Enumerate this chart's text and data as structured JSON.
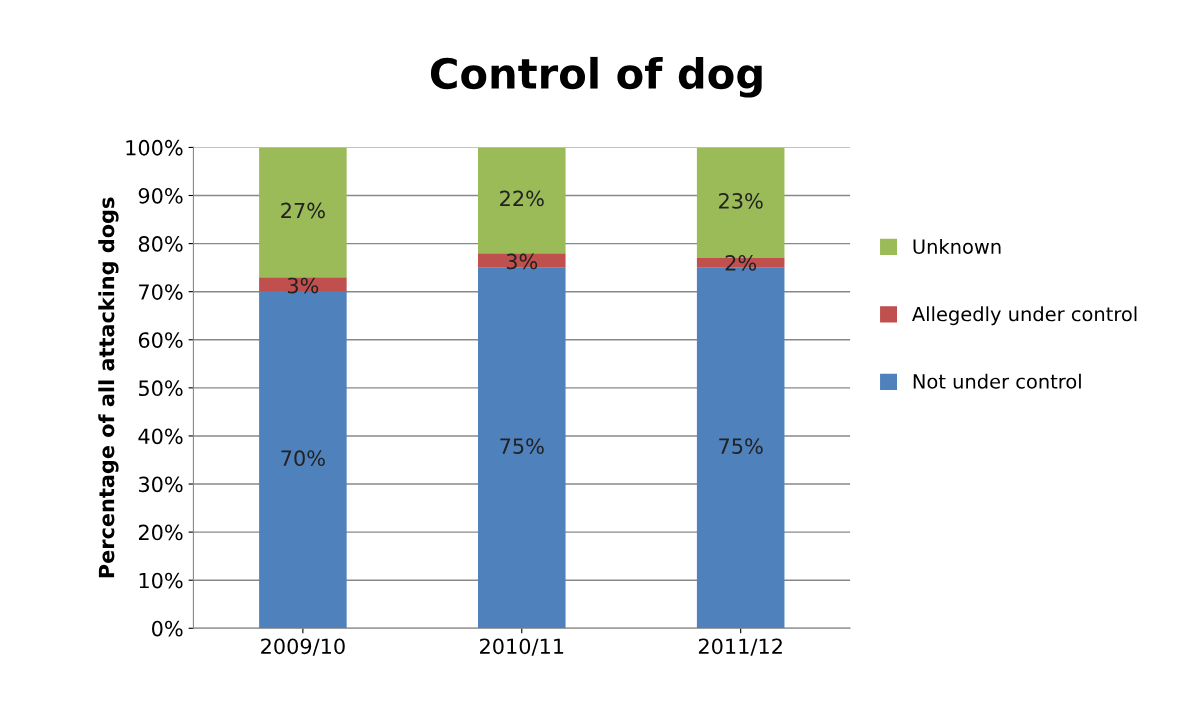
{
  "chart_data": {
    "type": "bar",
    "title": "Control of dog",
    "ylabel": "Percentage of all attacking dogs",
    "categories": [
      "2009/10",
      "2010/11",
      "2011/12"
    ],
    "stacked": true,
    "series": [
      {
        "name": "Not under control",
        "color": "#4f81bd",
        "values": [
          70,
          75,
          75
        ],
        "value_labels": [
          "70%",
          "75%",
          "75%"
        ]
      },
      {
        "name": "Allegedly under control",
        "color": "#c0504d",
        "values": [
          3,
          3,
          2
        ],
        "value_labels": [
          "3%",
          "3%",
          "2%"
        ]
      },
      {
        "name": "Unknown",
        "color": "#9bbb59",
        "values": [
          27,
          22,
          23
        ],
        "value_labels": [
          "27%",
          "22%",
          "23%"
        ]
      }
    ],
    "ylim": [
      0,
      100
    ],
    "yticks": [
      {
        "value": 0,
        "label": "0%"
      },
      {
        "value": 10,
        "label": "10%"
      },
      {
        "value": 20,
        "label": "20%"
      },
      {
        "value": 30,
        "label": "30%"
      },
      {
        "value": 40,
        "label": "40%"
      },
      {
        "value": 50,
        "label": "50%"
      },
      {
        "value": 60,
        "label": "60%"
      },
      {
        "value": 70,
        "label": "70%"
      },
      {
        "value": 80,
        "label": "80%"
      },
      {
        "value": 90,
        "label": "90%"
      },
      {
        "value": 100,
        "label": "100%"
      }
    ],
    "grid": "y",
    "legend": "right"
  }
}
